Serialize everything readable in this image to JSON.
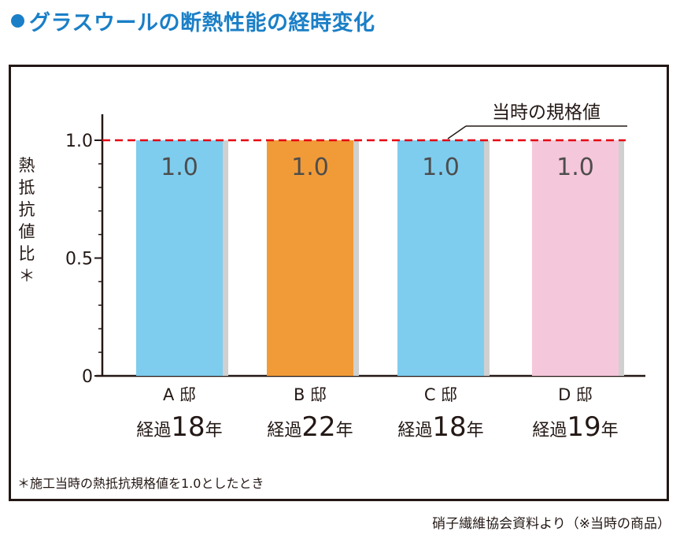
{
  "title": "グラスウールの断熱性能の経時変化",
  "footnote": "＊施工当時の熱抵抗規格値を1.0としたとき",
  "source": "硝子繊維協会資料より（※当時の商品）",
  "chart_data": {
    "type": "bar",
    "title": "グラスウールの断熱性能の経時変化",
    "ylabel": "熱抵抗値比＊",
    "ylim": [
      0,
      1.0
    ],
    "yticks": [
      "0",
      "0.5",
      "1.0"
    ],
    "categories": [
      "A 邸",
      "B 邸",
      "C 邸",
      "D 邸"
    ],
    "category_sublabels": [
      {
        "prefix": "経過",
        "years": "18",
        "suffix": "年"
      },
      {
        "prefix": "経過",
        "years": "22",
        "suffix": "年"
      },
      {
        "prefix": "経過",
        "years": "18",
        "suffix": "年"
      },
      {
        "prefix": "経過",
        "years": "19",
        "suffix": "年"
      }
    ],
    "values": [
      1.0,
      1.0,
      1.0,
      1.0
    ],
    "value_labels": [
      "1.0",
      "1.0",
      "1.0",
      "1.0"
    ],
    "bar_colors": [
      "#7fcdee",
      "#f19b38",
      "#7fcdee",
      "#f5c7da"
    ],
    "reference_line": {
      "value": 1.0,
      "label": "当時の規格値",
      "color": "#e60012",
      "style": "dashed"
    },
    "grid": false
  }
}
